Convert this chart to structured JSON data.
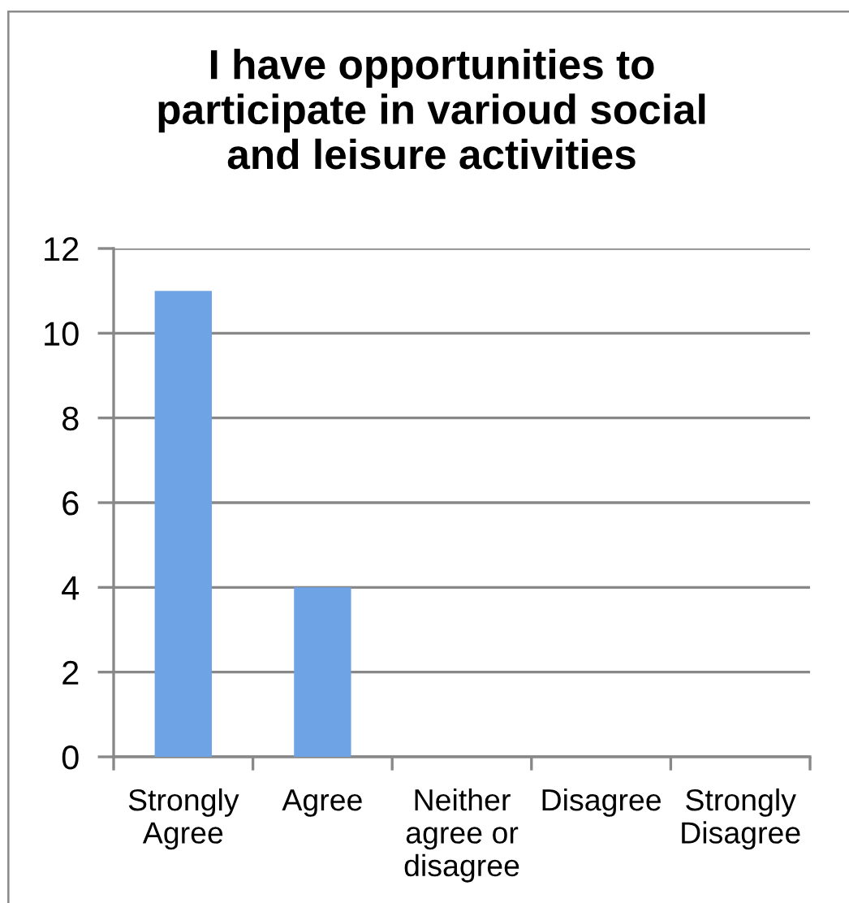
{
  "chart_data": {
    "type": "bar",
    "title": "I have opportunities to\nparticipate in varioud social\nand leisure activities",
    "categories": [
      "Strongly\nAgree",
      "Agree",
      "Neither\nagree or\ndisagree",
      "Disagree",
      "Strongly\nDisagree"
    ],
    "values": [
      11,
      4,
      0,
      0,
      0
    ],
    "color": "#6ea4e6",
    "ylim": [
      0,
      12
    ],
    "yticks": [
      0,
      2,
      4,
      6,
      8,
      10,
      12
    ],
    "grid": "y"
  }
}
